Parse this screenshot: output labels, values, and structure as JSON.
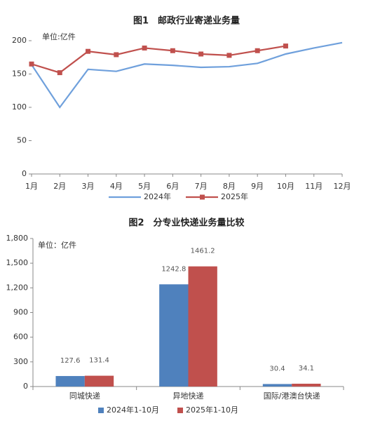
{
  "chart_data": [
    {
      "type": "line",
      "title": "图1　邮政行业寄递业务量",
      "unit_label": "单位:亿件",
      "categories": [
        "1月",
        "2月",
        "3月",
        "4月",
        "5月",
        "6月",
        "7月",
        "8月",
        "9月",
        "10月",
        "11月",
        "12月"
      ],
      "series": [
        {
          "name": "2024年",
          "color": "#6fa0dc",
          "marker": "none",
          "values": [
            164,
            100,
            157,
            154,
            165,
            163,
            160,
            161,
            166,
            180,
            189,
            197
          ]
        },
        {
          "name": "2025年",
          "color": "#c0504d",
          "marker": "square",
          "values": [
            165,
            152,
            184,
            179,
            189,
            185,
            180,
            178,
            185,
            192,
            null,
            null
          ]
        }
      ],
      "ylim": [
        0,
        200
      ],
      "yticks": [
        0,
        50,
        100,
        150,
        200
      ],
      "legend": "bottom"
    },
    {
      "type": "bar",
      "title": "图2　分专业快递业务量比较",
      "unit_label": "单位：亿件",
      "categories": [
        "同城快递",
        "异地快递",
        "国际/港澳台快递"
      ],
      "series": [
        {
          "name": "2024年1-10月",
          "color": "#4f81bd",
          "values": [
            127.6,
            1242.8,
            30.4
          ]
        },
        {
          "name": "2025年1-10月",
          "color": "#c0504d",
          "values": [
            131.4,
            1461.2,
            34.1
          ]
        }
      ],
      "ylim": [
        0,
        1800
      ],
      "yticks": [
        0,
        300,
        600,
        900,
        {
          "value": 1200,
          "label": "1,200"
        },
        {
          "value": 1500,
          "label": "1,500"
        },
        {
          "value": 1800,
          "label": "1,800"
        }
      ],
      "legend": "bottom"
    }
  ]
}
